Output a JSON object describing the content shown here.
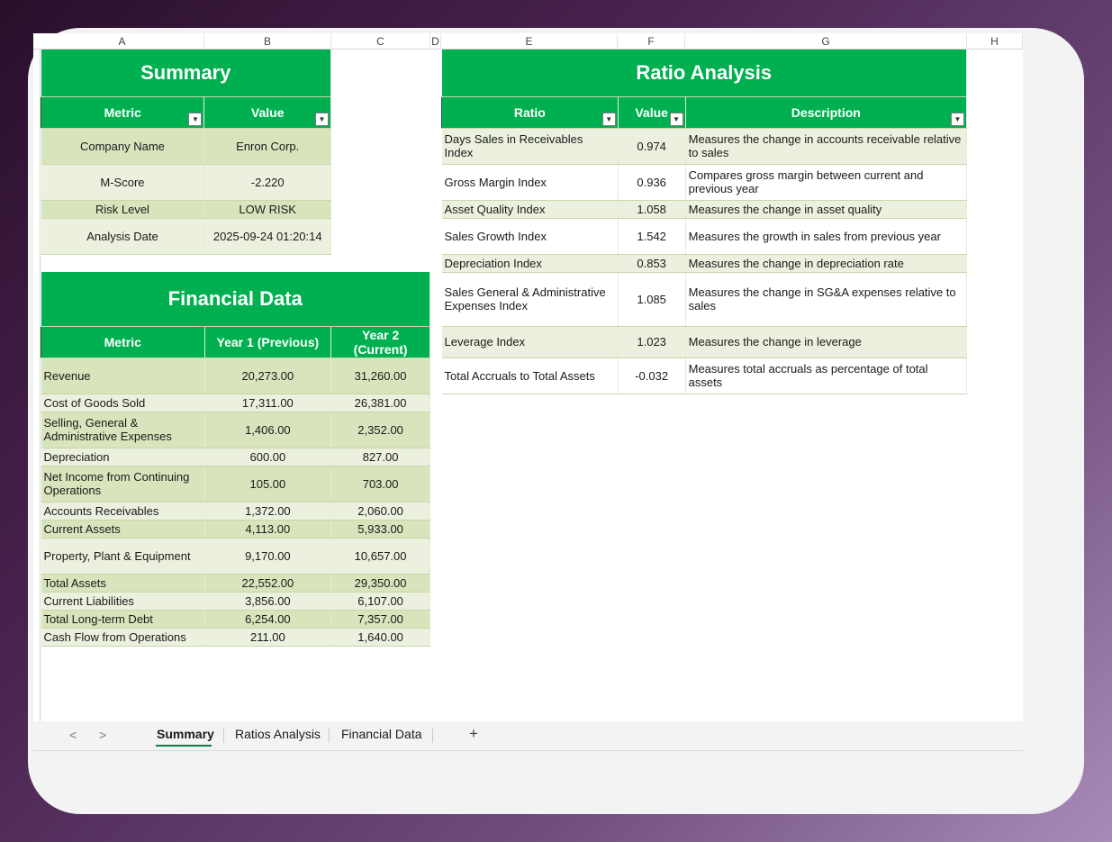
{
  "columns": [
    "A",
    "B",
    "C",
    "D",
    "E",
    "F",
    "G",
    "H"
  ],
  "summary": {
    "title": "Summary",
    "headers": [
      "Metric",
      "Value"
    ],
    "rows": [
      [
        "Company Name",
        "Enron Corp."
      ],
      [
        "M-Score",
        "-2.220"
      ],
      [
        "Risk Level",
        "LOW RISK"
      ],
      [
        "Analysis Date",
        "2025-09-24 01:20:14"
      ]
    ]
  },
  "financial": {
    "title": "Financial Data",
    "headers": [
      "Metric",
      "Year 1 (Previous)",
      "Year 2 (Current)"
    ],
    "rows": [
      [
        "Revenue",
        "20,273.00",
        "31,260.00"
      ],
      [
        "Cost of Goods Sold",
        "17,311.00",
        "26,381.00"
      ],
      [
        "Selling, General & Administrative Expenses",
        "1,406.00",
        "2,352.00"
      ],
      [
        "Depreciation",
        "600.00",
        "827.00"
      ],
      [
        "Net Income from Continuing Operations",
        "105.00",
        "703.00"
      ],
      [
        "Accounts Receivables",
        "1,372.00",
        "2,060.00"
      ],
      [
        "Current Assets",
        "4,113.00",
        "5,933.00"
      ],
      [
        "Property, Plant & Equipment",
        "9,170.00",
        "10,657.00"
      ],
      [
        "Total Assets",
        "22,552.00",
        "29,350.00"
      ],
      [
        "Current Liabilities",
        "3,856.00",
        "6,107.00"
      ],
      [
        "Total Long-term Debt",
        "6,254.00",
        "7,357.00"
      ],
      [
        "Cash Flow from Operations",
        "211.00",
        "1,640.00"
      ]
    ]
  },
  "ratios": {
    "title": "Ratio Analysis",
    "headers": [
      "Ratio",
      "Value",
      "Description"
    ],
    "rows": [
      [
        "Days Sales in Receivables Index",
        "0.974",
        "Measures the change in accounts receivable relative to sales"
      ],
      [
        "Gross Margin Index",
        "0.936",
        "Compares gross margin between current and previous year"
      ],
      [
        "Asset Quality Index",
        "1.058",
        "Measures the change in asset quality"
      ],
      [
        "Sales Growth Index",
        "1.542",
        "Measures the growth in sales from previous year"
      ],
      [
        "Depreciation Index",
        "0.853",
        "Measures the change in depreciation rate"
      ],
      [
        "Sales General & Administrative Expenses Index",
        "1.085",
        "Measures the change in SG&A expenses relative to sales"
      ],
      [
        "Leverage Index",
        "1.023",
        "Measures the change in leverage"
      ],
      [
        "Total Accruals to Total Assets",
        "-0.032",
        "Measures total accruals as percentage of total assets"
      ]
    ]
  },
  "tabs": {
    "items": [
      "Summary",
      "Ratios Analysis",
      "Financial Data"
    ],
    "active": "Summary",
    "add_label": "+",
    "prev_label": "<",
    "next_label": ">"
  },
  "colors": {
    "header_green": "#00b050",
    "band_dark": "#d8e4bc",
    "band_light": "#ebf1de"
  },
  "icons": {
    "filter": "filter-dropdown-icon",
    "add": "plus-icon"
  }
}
